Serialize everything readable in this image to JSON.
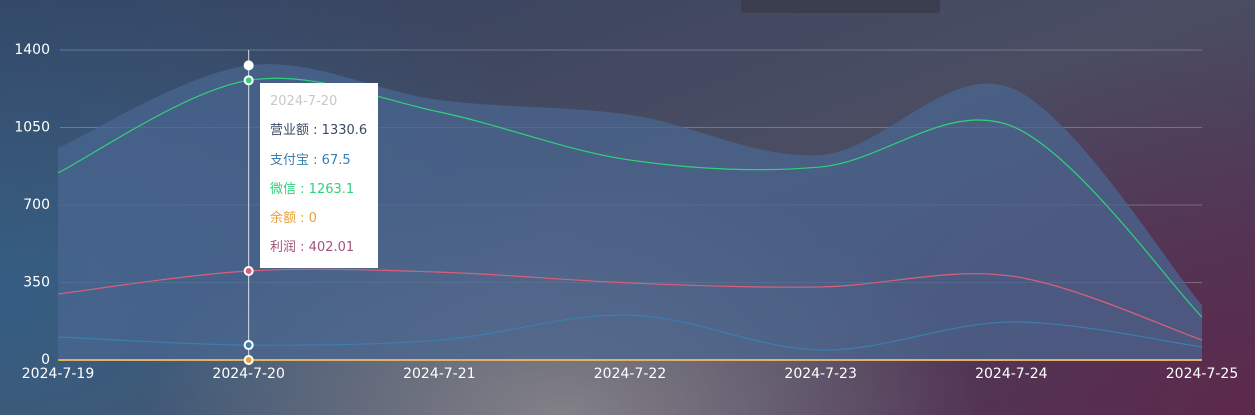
{
  "chart_data": {
    "type": "line",
    "categories": [
      "2024-7-19",
      "2024-7-20",
      "2024-7-21",
      "2024-7-22",
      "2024-7-23",
      "2024-7-24",
      "2024-7-25"
    ],
    "series": [
      {
        "name": "营业额",
        "color": "#4a6690",
        "text_color": "#3a4a66",
        "area": true,
        "values": [
          957,
          1330.6,
          1174,
          1107,
          926,
          1228,
          248
        ]
      },
      {
        "name": "支付宝",
        "color": "#3a7fae",
        "values": [
          104,
          67.5,
          90,
          203,
          45,
          172,
          59
        ]
      },
      {
        "name": "微信",
        "color": "#2fd27a",
        "values": [
          845,
          1263.1,
          1120,
          903,
          872,
          1057,
          194
        ]
      },
      {
        "name": "余额",
        "color": "#e6a23c",
        "values": [
          0,
          0,
          0,
          0,
          0,
          0,
          0
        ]
      },
      {
        "name": "利润",
        "color": "#d9607a",
        "text_color": "#a0557a",
        "values": [
          298,
          402.01,
          397,
          348,
          330,
          379,
          90
        ]
      }
    ],
    "ylim": [
      0,
      1400
    ],
    "yticks": [
      0,
      350,
      700,
      1050,
      1400
    ],
    "grid": true,
    "tooltip": {
      "x": "2024-7-20",
      "separator": " : "
    }
  }
}
